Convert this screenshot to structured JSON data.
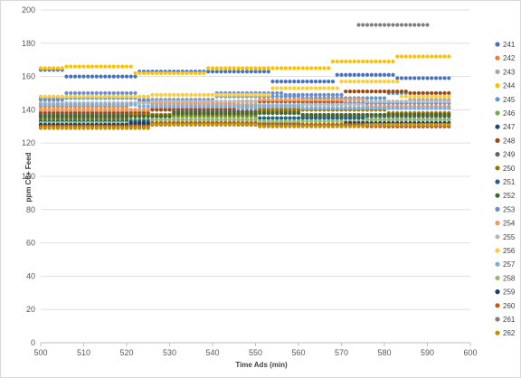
{
  "chart_data": {
    "type": "scatter",
    "title": "",
    "xlabel": "Time Ads (min)",
    "ylabel": "ppm C6+ Feed",
    "xlim": [
      500,
      600
    ],
    "ylim": [
      0,
      200
    ],
    "x_ticks": [
      500,
      510,
      520,
      530,
      540,
      550,
      560,
      570,
      580,
      590,
      600
    ],
    "y_ticks": [
      0,
      20,
      40,
      60,
      80,
      100,
      120,
      140,
      160,
      180,
      200
    ],
    "grid": "horizontal",
    "legend_position": "right",
    "x_step": 1,
    "series": [
      {
        "name": "241",
        "color": "#4472C4",
        "segments": [
          [
            500,
            505,
            164
          ],
          [
            506,
            522,
            160
          ],
          [
            523,
            553,
            163
          ],
          [
            554,
            568,
            157
          ],
          [
            569,
            582,
            161
          ],
          [
            583,
            595,
            159
          ]
        ]
      },
      {
        "name": "242",
        "color": "#ED7D31",
        "segments": [
          [
            500,
            520,
            142
          ],
          [
            521,
            545,
            144
          ],
          [
            546,
            570,
            143
          ],
          [
            571,
            595,
            141
          ]
        ]
      },
      {
        "name": "243",
        "color": "#A5A5A5",
        "segments": [
          [
            500,
            525,
            139
          ],
          [
            526,
            560,
            141
          ],
          [
            561,
            585,
            144
          ],
          [
            586,
            595,
            146
          ]
        ]
      },
      {
        "name": "244",
        "color": "#FFC000",
        "segments": [
          [
            500,
            505,
            165
          ],
          [
            506,
            521,
            166
          ],
          [
            522,
            538,
            162
          ],
          [
            539,
            553,
            165
          ],
          [
            554,
            567,
            165
          ],
          [
            568,
            582,
            169
          ],
          [
            583,
            595,
            172
          ]
        ]
      },
      {
        "name": "245",
        "color": "#5B9BD5",
        "segments": [
          [
            500,
            522,
            147
          ],
          [
            523,
            540,
            145
          ],
          [
            541,
            560,
            148
          ],
          [
            561,
            580,
            147
          ],
          [
            581,
            595,
            150
          ]
        ]
      },
      {
        "name": "246",
        "color": "#70AD47",
        "segments": [
          [
            500,
            525,
            134
          ],
          [
            526,
            550,
            136
          ],
          [
            551,
            575,
            135
          ],
          [
            576,
            595,
            134
          ]
        ]
      },
      {
        "name": "247",
        "color": "#264478",
        "segments": [
          [
            500,
            530,
            131
          ],
          [
            531,
            560,
            132
          ],
          [
            561,
            580,
            131
          ],
          [
            581,
            595,
            130
          ]
        ]
      },
      {
        "name": "248",
        "color": "#9E480E",
        "segments": [
          [
            500,
            525,
            138
          ],
          [
            526,
            545,
            140
          ],
          [
            546,
            570,
            145
          ],
          [
            571,
            585,
            151
          ],
          [
            586,
            595,
            150
          ]
        ]
      },
      {
        "name": "249",
        "color": "#636363",
        "segments": [
          [
            500,
            530,
            137
          ],
          [
            531,
            560,
            139
          ],
          [
            561,
            595,
            136
          ]
        ]
      },
      {
        "name": "250",
        "color": "#997300",
        "segments": [
          [
            500,
            520,
            135
          ],
          [
            521,
            550,
            137
          ],
          [
            551,
            580,
            140
          ],
          [
            581,
            595,
            138
          ]
        ]
      },
      {
        "name": "251",
        "color": "#255E91",
        "segments": [
          [
            500,
            525,
            133
          ],
          [
            526,
            550,
            134
          ],
          [
            551,
            575,
            135
          ],
          [
            576,
            595,
            134
          ]
        ]
      },
      {
        "name": "252",
        "color": "#43682B",
        "segments": [
          [
            500,
            530,
            136
          ],
          [
            531,
            560,
            138
          ],
          [
            561,
            595,
            137
          ]
        ]
      },
      {
        "name": "253",
        "color": "#698ED0",
        "segments": [
          [
            500,
            505,
            146
          ],
          [
            506,
            522,
            150
          ],
          [
            523,
            540,
            146
          ],
          [
            541,
            556,
            150
          ],
          [
            557,
            570,
            149
          ],
          [
            571,
            595,
            144
          ]
        ]
      },
      {
        "name": "254",
        "color": "#F1975A",
        "segments": [
          [
            500,
            525,
            140
          ],
          [
            526,
            550,
            143
          ],
          [
            551,
            575,
            146
          ],
          [
            576,
            595,
            142
          ]
        ]
      },
      {
        "name": "255",
        "color": "#B7B7B7",
        "segments": [
          [
            500,
            525,
            144
          ],
          [
            526,
            550,
            145
          ],
          [
            551,
            575,
            143
          ],
          [
            576,
            595,
            145
          ]
        ]
      },
      {
        "name": "256",
        "color": "#FFCD33",
        "segments": [
          [
            500,
            525,
            148
          ],
          [
            526,
            553,
            149
          ],
          [
            554,
            569,
            153
          ],
          [
            570,
            583,
            157
          ],
          [
            584,
            595,
            148
          ]
        ]
      },
      {
        "name": "257",
        "color": "#7CAFDD",
        "segments": [
          [
            500,
            522,
            143
          ],
          [
            523,
            560,
            142
          ],
          [
            561,
            595,
            141
          ]
        ]
      },
      {
        "name": "258",
        "color": "#8CC168",
        "segments": [
          [
            500,
            525,
            132
          ],
          [
            526,
            550,
            134
          ],
          [
            551,
            575,
            133
          ],
          [
            576,
            595,
            134
          ]
        ]
      },
      {
        "name": "259",
        "color": "#1F3864",
        "segments": [
          [
            500,
            520,
            131
          ],
          [
            521,
            545,
            132
          ],
          [
            546,
            570,
            131
          ],
          [
            571,
            595,
            132
          ]
        ]
      },
      {
        "name": "260",
        "color": "#C55A11",
        "segments": [
          [
            500,
            525,
            130
          ],
          [
            526,
            550,
            132
          ],
          [
            551,
            575,
            131
          ],
          [
            576,
            595,
            130
          ]
        ]
      },
      {
        "name": "261",
        "color": "#7F7F7F",
        "segments": [
          [
            574,
            590,
            191
          ]
        ]
      },
      {
        "name": "262",
        "color": "#BF9000",
        "segments": [
          [
            500,
            525,
            129
          ],
          [
            526,
            550,
            131
          ],
          [
            551,
            575,
            130
          ],
          [
            576,
            595,
            131
          ]
        ]
      }
    ]
  }
}
